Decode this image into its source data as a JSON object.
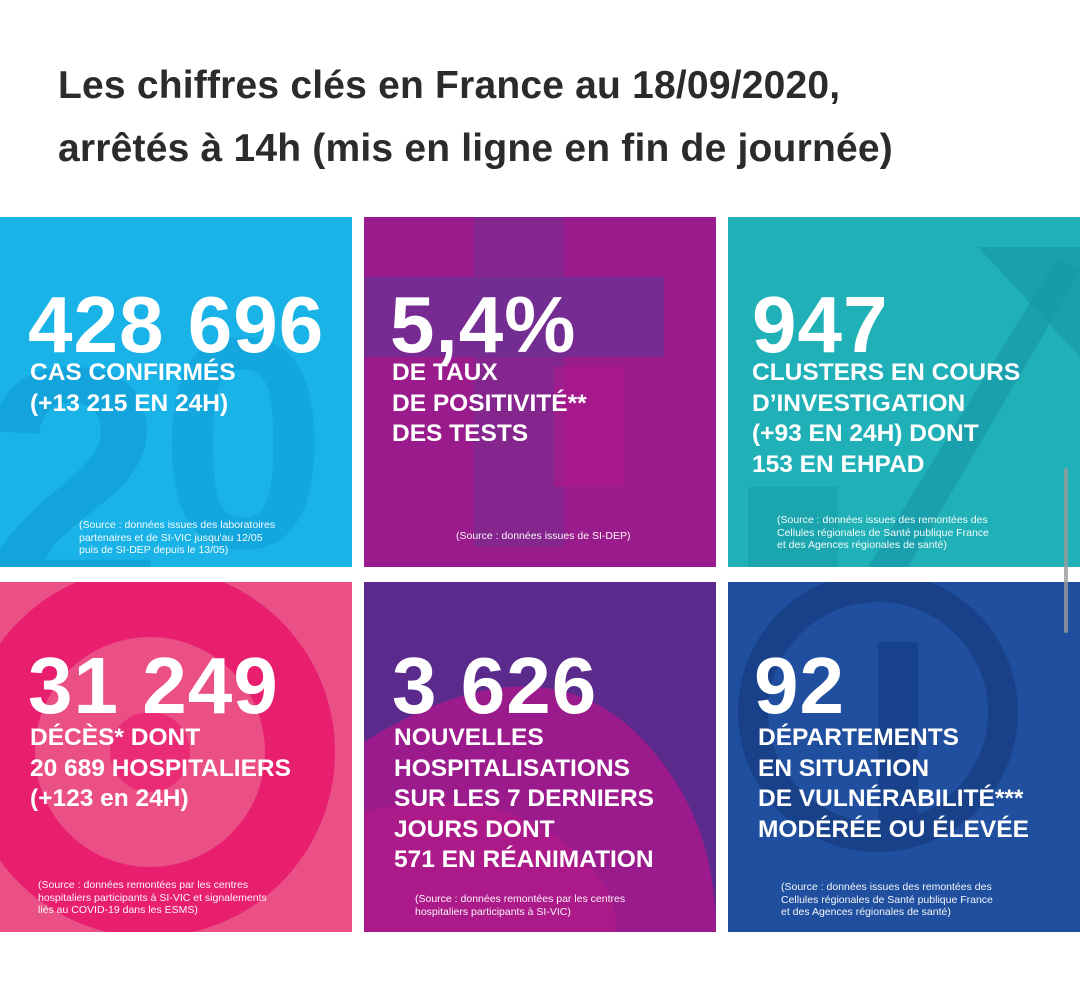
{
  "title": {
    "line1": "Les chiffres clés en France au 18/09/2020,",
    "line2": "arrêtés à 14h (mis en ligne en fin de journée)"
  },
  "tiles": [
    {
      "value": "428 696",
      "label": [
        "CAS CONFIRMÉS",
        "(+13 215 EN 24H)"
      ],
      "source": [
        "(Source : données issues des laboratoires",
        "partenaires et de SI-VIC jusqu'au 12/05",
        "puis de SI-DEP depuis le 13/05)"
      ]
    },
    {
      "value": "5,4%",
      "label": [
        "DE TAUX",
        "DE POSITIVITÉ**",
        "DES TESTS"
      ],
      "source": [
        "(Source : données issues de SI-DEP)"
      ]
    },
    {
      "value": "947",
      "label": [
        "CLUSTERS EN COURS",
        "D’INVESTIGATION",
        "(+93 EN 24H) DONT",
        "153 EN EHPAD"
      ],
      "source": [
        "(Source : données issues des remontées des",
        "Cellules régionales de Santé publique France",
        "et des Agences régionales de santé)"
      ]
    },
    {
      "value": "31 249",
      "label": [
        "DÉCÈS* DONT",
        "20 689 HOSPITALIERS",
        "(+123 en 24H)"
      ],
      "source": [
        "(Source : données remontées par les centres",
        "hospitaliers participants à SI-VIC et signalements",
        "liés au COVID-19 dans les ESMS)"
      ]
    },
    {
      "value": "3 626",
      "label": [
        "NOUVELLES",
        "HOSPITALISATIONS",
        "SUR LES 7 DERNIERS",
        "JOURS DONT",
        "571 EN RÉANIMATION"
      ],
      "source": [
        "(Source : données remontées par les centres",
        "hospitaliers participants à SI-VIC)"
      ]
    },
    {
      "value": "92",
      "label": [
        "DÉPARTEMENTS",
        "EN SITUATION",
        "DE VULNÉRABILITÉ***",
        "MODÉRÉE OU ÉLEVÉE"
      ],
      "source": [
        "(Source : données issues des remontées des",
        "Cellules régionales de Santé publique France",
        "et des Agences régionales de santé)"
      ]
    }
  ],
  "colors": {
    "cases": "#1ab3e8",
    "positivity": "#9a1c8c",
    "clusters": "#1fb1b7",
    "deaths": "#ea4f86",
    "hospital": "#5a2a8c",
    "departments": "#1f4f9e"
  }
}
